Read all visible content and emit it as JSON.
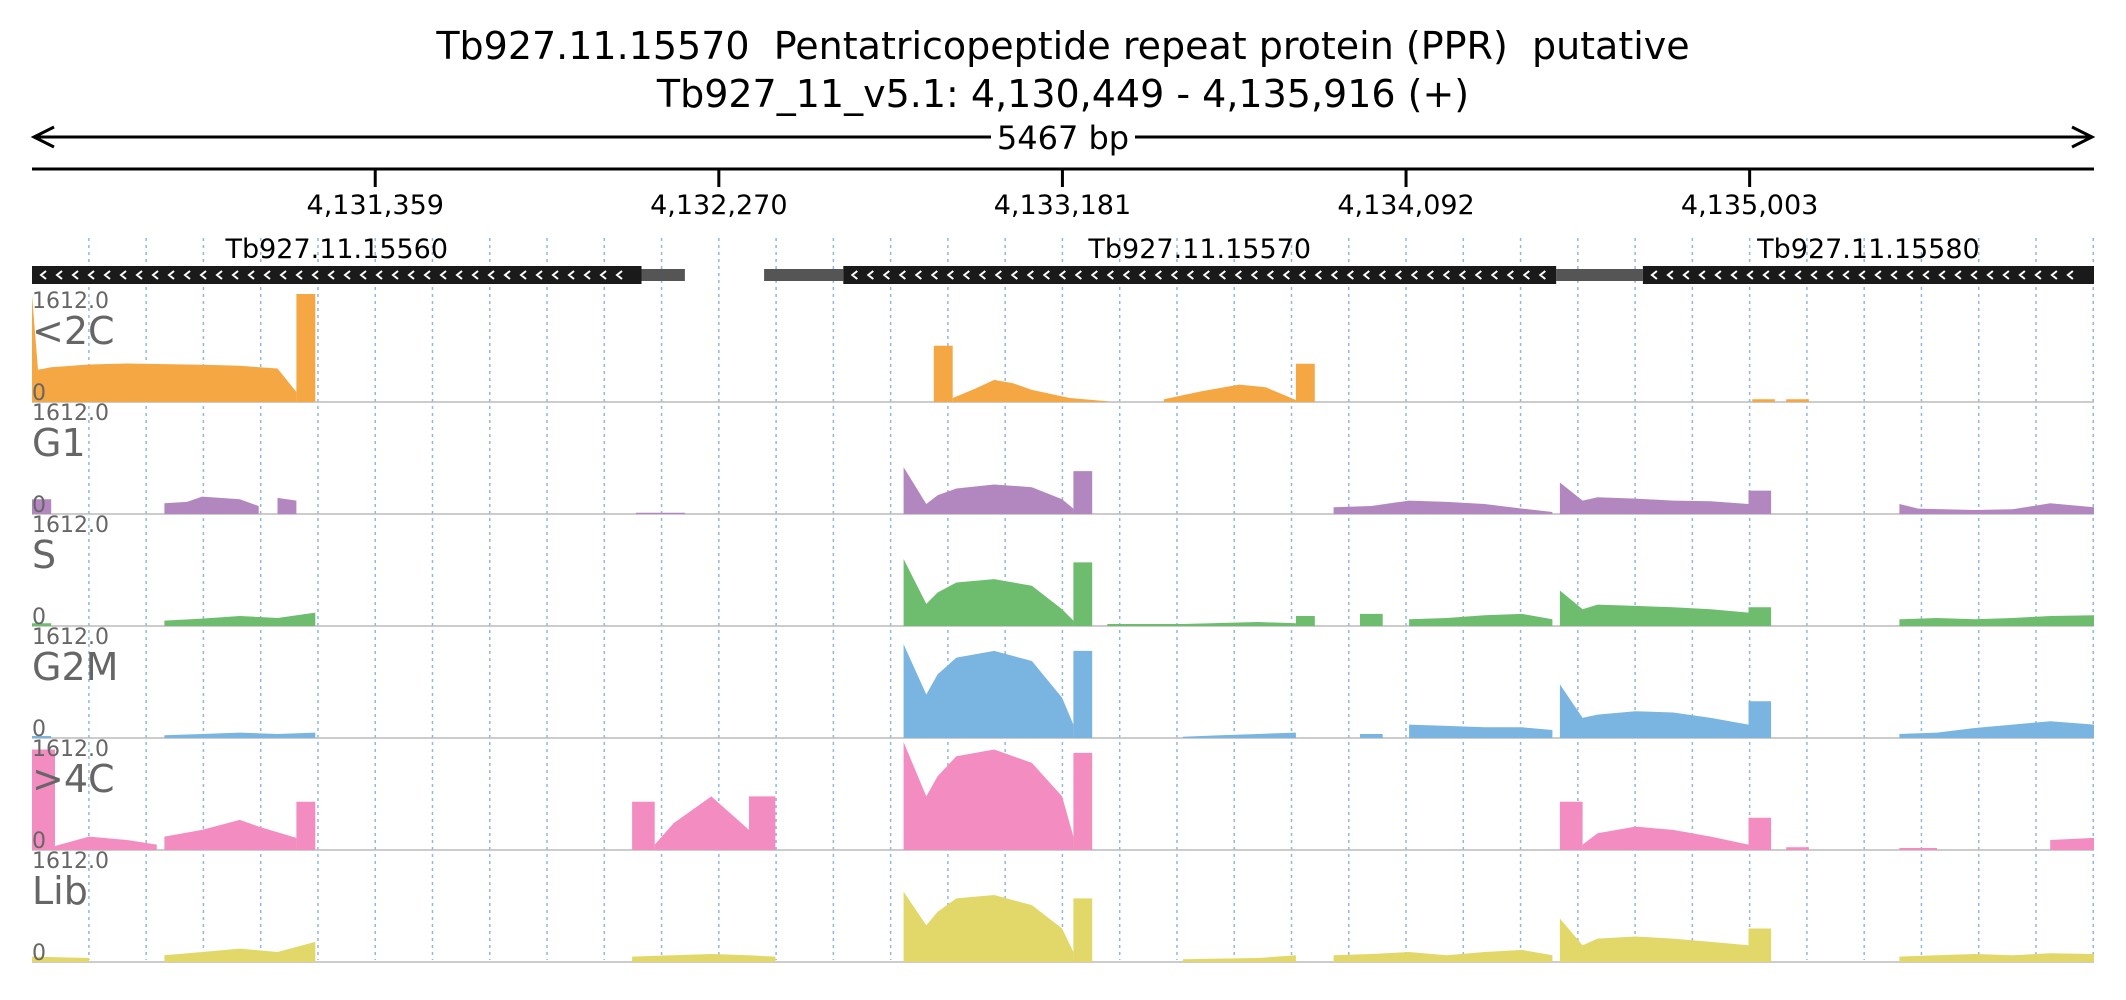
{
  "header": {
    "title": "Tb927.11.15570  Pentatricopeptide repeat protein (PPR)  putative",
    "subtitle": "Tb927_11_v5.1: 4,130,449 - 4,135,916 (+)",
    "span_label": "5467 bp"
  },
  "chart_data": {
    "type": "area",
    "chromosome": "Tb927_11_v5.1",
    "x_range": [
      4130449,
      4135916
    ],
    "strand": "+",
    "span_label": "5467 bp",
    "ticks": [
      {
        "pos": 4131359,
        "label": "4,131,359"
      },
      {
        "pos": 4132270,
        "label": "4,132,270"
      },
      {
        "pos": 4133181,
        "label": "4,133,181"
      },
      {
        "pos": 4134092,
        "label": "4,134,092"
      },
      {
        "pos": 4135003,
        "label": "4,135,003"
      }
    ],
    "genes": [
      {
        "name": "Tb927.11.15560",
        "strand": "-",
        "cds": [
          4130449,
          4132065
        ],
        "utr": [
          [
            4132065,
            4132180
          ]
        ]
      },
      {
        "name": "Tb927.11.15570",
        "strand": "-",
        "cds": [
          4132600,
          4134490
        ],
        "utr": [
          [
            4132390,
            4132600
          ],
          [
            4134490,
            4134580
          ]
        ]
      },
      {
        "name": "Tb927.11.15580",
        "strand": "-",
        "cds": [
          4134720,
          4135916
        ],
        "utr": [
          [
            4134560,
            4134720
          ]
        ]
      }
    ],
    "ymax_label": "1612.0",
    "ymin_label": "0",
    "ylim": [
      0,
      1612
    ],
    "series": [
      {
        "name": "<2C",
        "color": "#f5a743",
        "segments": [
          {
            "x": [
              4130449,
              4130465,
              4130500,
              4130600,
              4130700,
              4130800,
              4130900,
              4131000,
              4131100,
              4131150
            ],
            "y": [
              1600,
              480,
              520,
              560,
              575,
              565,
              555,
              540,
              500,
              150
            ]
          },
          {
            "x": [
              4131150,
              4131160,
              4131200
            ],
            "y": [
              1612,
              1612,
              1612
            ]
          },
          {
            "x": [
              4132840,
              4132850,
              4132890
            ],
            "y": [
              840,
              840,
              840
            ]
          },
          {
            "x": [
              4132890,
              4132950,
              4133000,
              4133050,
              4133100,
              4133200,
              4133300
            ],
            "y": [
              60,
              200,
              330,
              280,
              180,
              60,
              10
            ]
          },
          {
            "x": [
              4133450,
              4133550,
              4133650,
              4133720,
              4133800
            ],
            "y": [
              40,
              160,
              260,
              220,
              30
            ]
          },
          {
            "x": [
              4133800,
              4133810,
              4133850
            ],
            "y": [
              570,
              570,
              570
            ]
          },
          {
            "x": [
              4135010,
              4135070
            ],
            "y": [
              40,
              40
            ]
          },
          {
            "x": [
              4135100,
              4135160
            ],
            "y": [
              40,
              40
            ]
          }
        ]
      },
      {
        "name": "G1",
        "color": "#b287c0",
        "segments": [
          {
            "x": [
              4130449,
              4130500
            ],
            "y": [
              220,
              220
            ]
          },
          {
            "x": [
              4130800,
              4130860,
              4130900,
              4131000,
              4131050
            ],
            "y": [
              160,
              180,
              260,
              220,
              120
            ]
          },
          {
            "x": [
              4131100,
              4131150
            ],
            "y": [
              240,
              200
            ]
          },
          {
            "x": [
              4132050,
              4132180
            ],
            "y": [
              20,
              20
            ]
          },
          {
            "x": [
              4132760,
              4132820,
              4132850,
              4132900,
              4133000,
              4133100,
              4133180,
              4133210
            ],
            "y": [
              700,
              150,
              280,
              380,
              440,
              400,
              220,
              80
            ]
          },
          {
            "x": [
              4133210,
              4133260
            ],
            "y": [
              640,
              640
            ]
          },
          {
            "x": [
              4133900,
              4134000,
              4134100,
              4134200,
              4134300,
              4134400,
              4134480
            ],
            "y": [
              100,
              120,
              200,
              180,
              150,
              80,
              30
            ]
          },
          {
            "x": [
              4134500,
              4134560,
              4134600,
              4134700,
              4134800,
              4134900,
              4135000
            ],
            "y": [
              470,
              200,
              250,
              230,
              200,
              190,
              150
            ]
          },
          {
            "x": [
              4135000,
              4135060
            ],
            "y": [
              350,
              350
            ]
          },
          {
            "x": [
              4135400,
              4135450,
              4135600,
              4135700,
              4135800,
              4135916
            ],
            "y": [
              150,
              80,
              60,
              70,
              160,
              100
            ]
          }
        ]
      },
      {
        "name": "S",
        "color": "#6ebc6e",
        "segments": [
          {
            "x": [
              4130449,
              4130500
            ],
            "y": [
              40,
              40
            ]
          },
          {
            "x": [
              4130800,
              4130900,
              4131000,
              4131100,
              4131200
            ],
            "y": [
              80,
              110,
              150,
              120,
              200
            ]
          },
          {
            "x": [
              4132760,
              4132820,
              4132850,
              4132900,
              4133000,
              4133100,
              4133180,
              4133210
            ],
            "y": [
              1000,
              330,
              500,
              650,
              700,
              600,
              250,
              80
            ]
          },
          {
            "x": [
              4133210,
              4133260
            ],
            "y": [
              950,
              950
            ]
          },
          {
            "x": [
              4133300,
              4133500,
              4133700,
              4133800
            ],
            "y": [
              30,
              30,
              60,
              40
            ]
          },
          {
            "x": [
              4133800,
              4133850
            ],
            "y": [
              150,
              150
            ]
          },
          {
            "x": [
              4133970,
              4134030
            ],
            "y": [
              180,
              180
            ]
          },
          {
            "x": [
              4134100,
              4134200,
              4134300,
              4134400,
              4134480
            ],
            "y": [
              100,
              120,
              160,
              180,
              100
            ]
          },
          {
            "x": [
              4134500,
              4134560,
              4134600,
              4134700,
              4134800,
              4134900,
              4135000
            ],
            "y": [
              530,
              250,
              320,
              300,
              280,
              250,
              200
            ]
          },
          {
            "x": [
              4135000,
              4135060
            ],
            "y": [
              280,
              280
            ]
          },
          {
            "x": [
              4135400,
              4135500,
              4135600,
              4135700,
              4135800,
              4135916
            ],
            "y": [
              100,
              120,
              100,
              120,
              150,
              160
            ]
          }
        ]
      },
      {
        "name": "G2M",
        "color": "#7ab4e0",
        "segments": [
          {
            "x": [
              4130449,
              4130500
            ],
            "y": [
              30,
              30
            ]
          },
          {
            "x": [
              4130800,
              4130900,
              4131000,
              4131100,
              4131200
            ],
            "y": [
              40,
              60,
              80,
              60,
              80
            ]
          },
          {
            "x": [
              4132760,
              4132820,
              4132850,
              4132900,
              4133000,
              4133100,
              4133180,
              4133210
            ],
            "y": [
              1400,
              650,
              950,
              1200,
              1300,
              1150,
              600,
              200
            ]
          },
          {
            "x": [
              4133210,
              4133260
            ],
            "y": [
              1300,
              1300
            ]
          },
          {
            "x": [
              4133500,
              4133600,
              4133700,
              4133800
            ],
            "y": [
              20,
              40,
              60,
              80
            ]
          },
          {
            "x": [
              4133970,
              4134030
            ],
            "y": [
              60,
              60
            ]
          },
          {
            "x": [
              4134100,
              4134200,
              4134300,
              4134400,
              4134480
            ],
            "y": [
              200,
              180,
              160,
              160,
              120
            ]
          },
          {
            "x": [
              4134500,
              4134560,
              4134600,
              4134700,
              4134800,
              4134900,
              4135000
            ],
            "y": [
              800,
              300,
              350,
              400,
              380,
              300,
              200
            ]
          },
          {
            "x": [
              4135000,
              4135060
            ],
            "y": [
              550,
              550
            ]
          },
          {
            "x": [
              4135400,
              4135500,
              4135600,
              4135700,
              4135800,
              4135916
            ],
            "y": [
              60,
              80,
              150,
              200,
              250,
              200
            ]
          }
        ]
      },
      {
        "name": ">4C",
        "color": "#f38cc0",
        "segments": [
          {
            "x": [
              4130449,
              4130510
            ],
            "y": [
              1500,
              1500
            ]
          },
          {
            "x": [
              4130510,
              4130600,
              4130700,
              4130780
            ],
            "y": [
              60,
              200,
              150,
              80
            ]
          },
          {
            "x": [
              4130800,
              4130900,
              4131000,
              4131050,
              4131150
            ],
            "y": [
              200,
              300,
              450,
              350,
              180
            ]
          },
          {
            "x": [
              4131150,
              4131200
            ],
            "y": [
              720,
              720
            ]
          },
          {
            "x": [
              4132040,
              4132100
            ],
            "y": [
              720,
              720
            ]
          },
          {
            "x": [
              4132100,
              4132150,
              4132250,
              4132350
            ],
            "y": [
              80,
              400,
              800,
              300
            ]
          },
          {
            "x": [
              4132350,
              4132420
            ],
            "y": [
              800,
              800
            ]
          },
          {
            "x": [
              4132760,
              4132820,
              4132850,
              4132900,
              4133000,
              4133100,
              4133180,
              4133210
            ],
            "y": [
              1612,
              800,
              1100,
              1400,
              1500,
              1300,
              800,
              200
            ]
          },
          {
            "x": [
              4133210,
              4133260
            ],
            "y": [
              1450,
              1450
            ]
          },
          {
            "x": [
              4134500,
              4134560
            ],
            "y": [
              720,
              720
            ]
          },
          {
            "x": [
              4134560,
              4134600,
              4134700,
              4134800,
              4134900,
              4135000
            ],
            "y": [
              80,
              250,
              350,
              300,
              200,
              80
            ]
          },
          {
            "x": [
              4135000,
              4135060
            ],
            "y": [
              480,
              480
            ]
          },
          {
            "x": [
              4135100,
              4135160
            ],
            "y": [
              40,
              40
            ]
          },
          {
            "x": [
              4135400,
              4135500
            ],
            "y": [
              30,
              30
            ]
          },
          {
            "x": [
              4135800,
              4135916
            ],
            "y": [
              150,
              180
            ]
          }
        ]
      },
      {
        "name": "Lib",
        "color": "#e2d86a",
        "segments": [
          {
            "x": [
              4130449,
              4130600
            ],
            "y": [
              80,
              60
            ]
          },
          {
            "x": [
              4130800,
              4130900,
              4131000,
              4131100,
              4131200
            ],
            "y": [
              100,
              150,
              200,
              150,
              300
            ]
          },
          {
            "x": [
              4132040,
              4132150,
              4132250,
              4132350,
              4132420
            ],
            "y": [
              80,
              100,
              120,
              100,
              80
            ]
          },
          {
            "x": [
              4132760,
              4132820,
              4132850,
              4132900,
              4133000,
              4133100,
              4133180,
              4133210
            ],
            "y": [
              1050,
              550,
              750,
              950,
              1000,
              850,
              500,
              150
            ]
          },
          {
            "x": [
              4133210,
              4133260
            ],
            "y": [
              950,
              950
            ]
          },
          {
            "x": [
              4133500,
              4133700,
              4133800
            ],
            "y": [
              40,
              60,
              100
            ]
          },
          {
            "x": [
              4133900,
              4134000,
              4134100,
              4134200,
              4134300,
              4134400,
              4134480
            ],
            "y": [
              100,
              120,
              150,
              100,
              150,
              180,
              100
            ]
          },
          {
            "x": [
              4134500,
              4134560,
              4134600,
              4134700,
              4134800,
              4134900,
              4135000
            ],
            "y": [
              650,
              250,
              350,
              380,
              350,
              300,
              250
            ]
          },
          {
            "x": [
              4135000,
              4135060
            ],
            "y": [
              500,
              500
            ]
          },
          {
            "x": [
              4135400,
              4135500,
              4135600,
              4135700,
              4135800,
              4135916
            ],
            "y": [
              80,
              100,
              120,
              100,
              130,
              120
            ]
          }
        ]
      }
    ]
  }
}
